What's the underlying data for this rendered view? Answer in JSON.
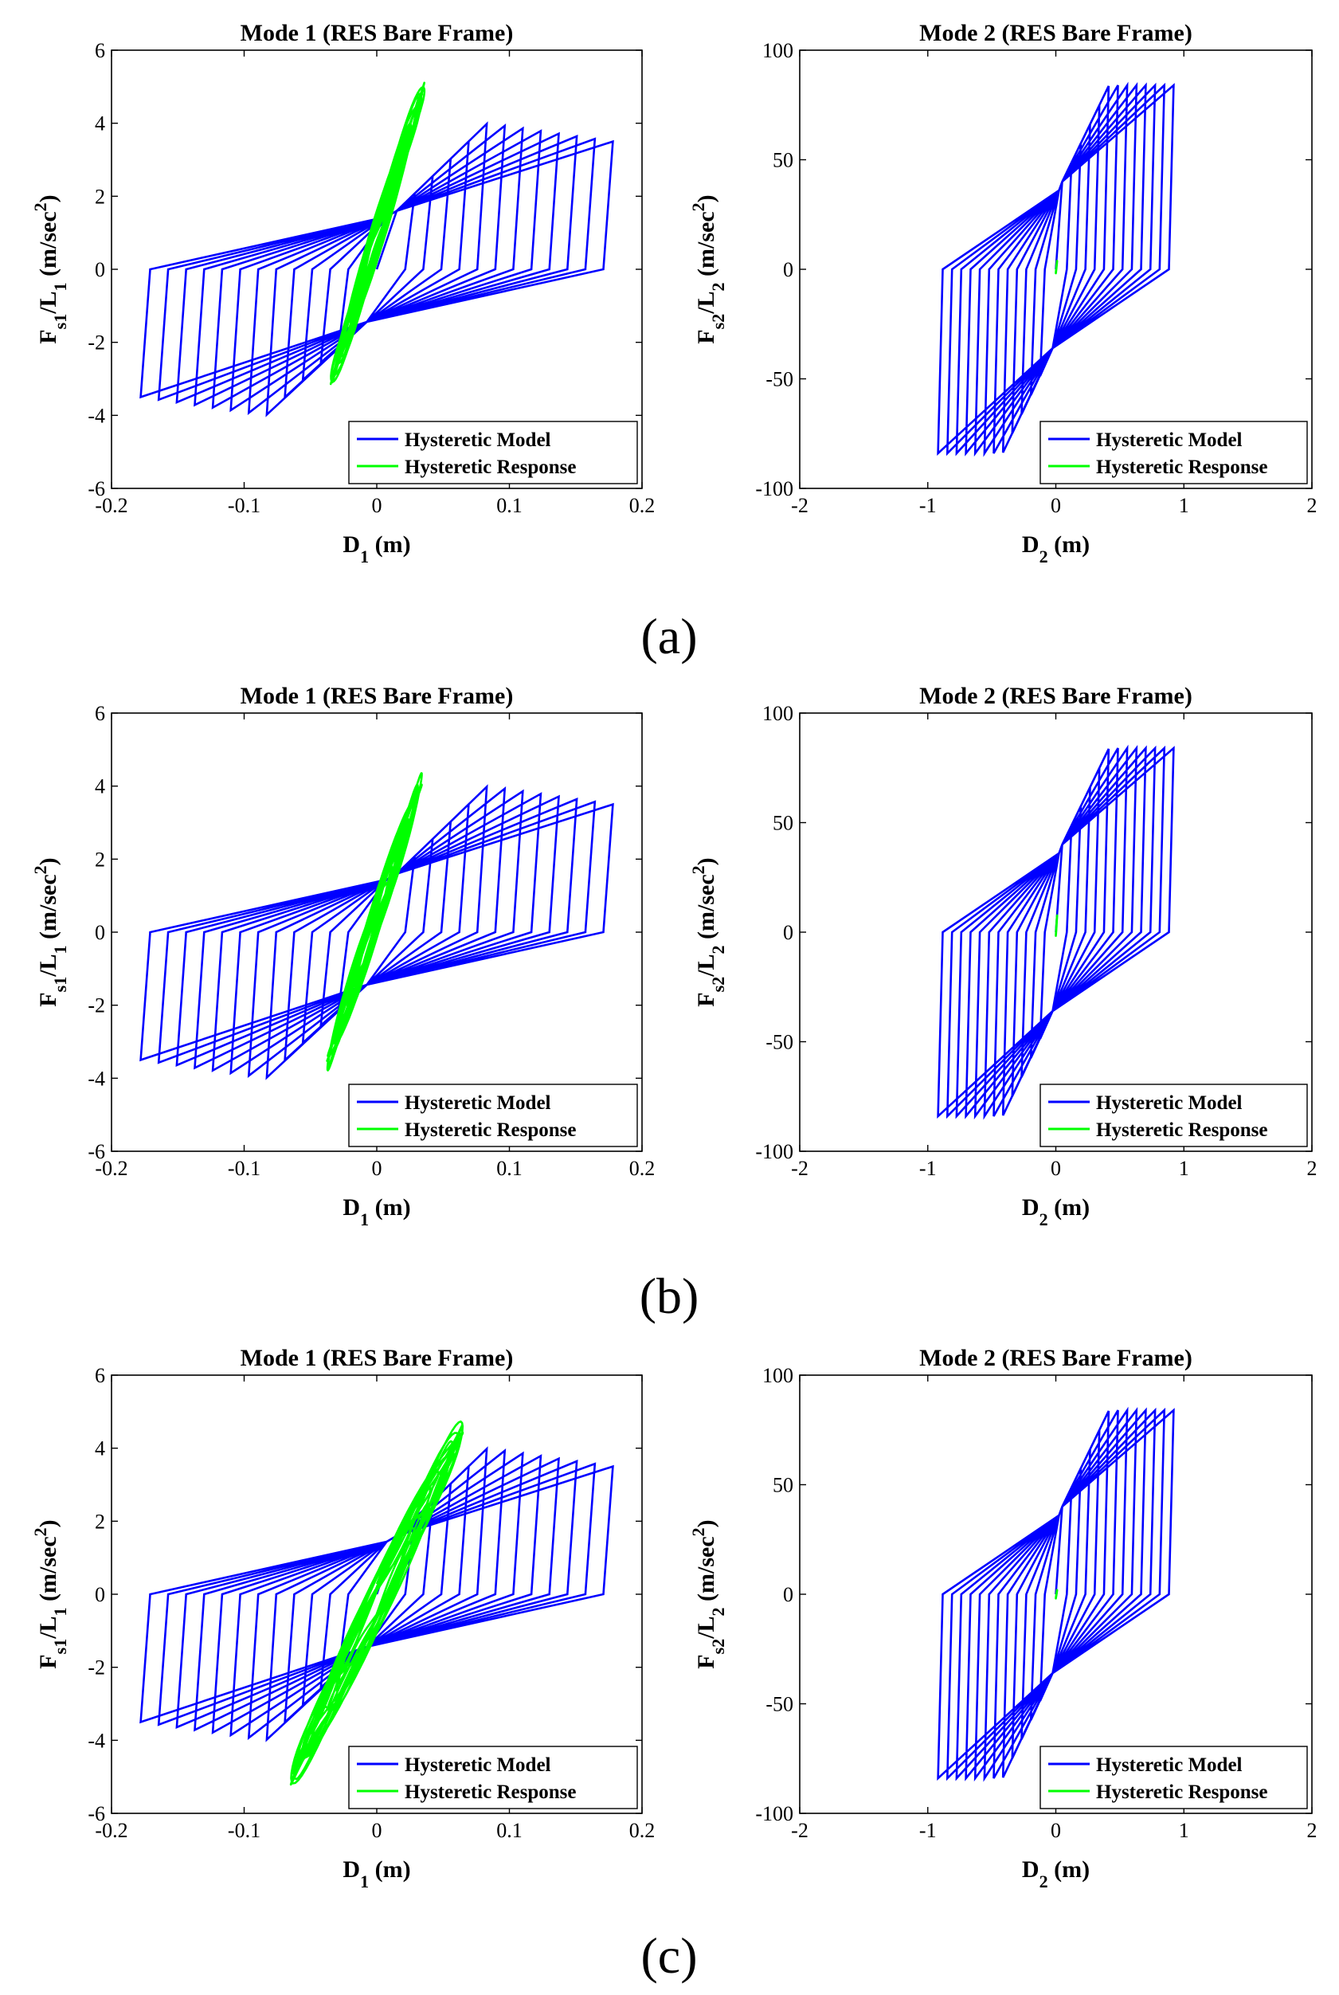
{
  "legend": {
    "model_label": "Hysteretic Model",
    "response_label": "Hysteretic Response",
    "model_color": "#0000ff",
    "response_color": "#00ff00"
  },
  "panels": [
    {
      "label": "(a)"
    },
    {
      "label": "(b)"
    },
    {
      "label": "(c)"
    }
  ],
  "chart_data": [
    {
      "type": "line",
      "panel": "(a)",
      "title": "Mode 1 (RES Bare Frame)",
      "xlabel": "D1 (m)",
      "ylabel": "Fs1/L1 (m/sec2)",
      "xlim": [
        -0.2,
        0.2
      ],
      "ylim": [
        -6,
        6
      ],
      "xticks": [
        "-0.2",
        "-0.1",
        "0",
        "0.1",
        "0.2"
      ],
      "yticks": [
        "-6",
        "-4",
        "-2",
        "0",
        "2",
        "4",
        "6"
      ],
      "series": [
        {
          "name": "Hysteretic Model",
          "model": "bilinear",
          "max_disp": 0.178,
          "yield_disp": 0.015,
          "yield_force": 1.6,
          "peak_force": 4.0,
          "end_force": 3.5,
          "cycles": 12
        },
        {
          "name": "Hysteretic Response",
          "d_range": [
            -0.035,
            0.036
          ],
          "f_range": [
            -3.5,
            5.4
          ]
        }
      ],
      "legend_location": "bottom-right"
    },
    {
      "type": "line",
      "panel": "(a)",
      "title": "Mode 2 (RES Bare Frame)",
      "xlabel": "D2 (m)",
      "ylabel": "Fs2/L2 (m/sec2)",
      "xlim": [
        -2,
        2
      ],
      "ylim": [
        -100,
        100
      ],
      "xticks": [
        "-2",
        "-1",
        "0",
        "1",
        "2"
      ],
      "yticks": [
        "-100",
        "-50",
        "0",
        "50",
        "100"
      ],
      "series": [
        {
          "name": "Hysteretic Model",
          "model": "bilinear",
          "max_disp": 0.92,
          "yield_disp": 0.05,
          "yield_force": 40,
          "peak_force": 84,
          "end_force": 84,
          "cycles": 12
        },
        {
          "name": "Hysteretic Response",
          "d_range": [
            0.0,
            0.01
          ],
          "f_range": [
            -2,
            4
          ]
        }
      ],
      "legend_location": "bottom-right"
    },
    {
      "type": "line",
      "panel": "(b)",
      "title": "Mode 1 (RES Bare Frame)",
      "xlabel": "D1 (m)",
      "ylabel": "Fs1/L1 (m/sec2)",
      "xlim": [
        -0.2,
        0.2
      ],
      "ylim": [
        -6,
        6
      ],
      "xticks": [
        "-0.2",
        "-0.1",
        "0",
        "0.1",
        "0.2"
      ],
      "yticks": [
        "-6",
        "-4",
        "-2",
        "0",
        "2",
        "4",
        "6"
      ],
      "series": [
        {
          "name": "Hysteretic Model",
          "model": "bilinear",
          "max_disp": 0.178,
          "yield_disp": 0.015,
          "yield_force": 1.6,
          "peak_force": 4.0,
          "end_force": 3.5,
          "cycles": 12
        },
        {
          "name": "Hysteretic Response",
          "d_range": [
            -0.038,
            0.034
          ],
          "f_range": [
            -4.0,
            4.5
          ]
        }
      ],
      "legend_location": "bottom-right"
    },
    {
      "type": "line",
      "panel": "(b)",
      "title": "Mode 2 (RES Bare Frame)",
      "xlabel": "D2 (m)",
      "ylabel": "Fs2/L2 (m/sec2)",
      "xlim": [
        -2,
        2
      ],
      "ylim": [
        -100,
        100
      ],
      "xticks": [
        "-2",
        "-1",
        "0",
        "1",
        "2"
      ],
      "yticks": [
        "-100",
        "-50",
        "0",
        "50",
        "100"
      ],
      "series": [
        {
          "name": "Hysteretic Model",
          "model": "bilinear",
          "max_disp": 0.92,
          "yield_disp": 0.05,
          "yield_force": 40,
          "peak_force": 84,
          "end_force": 84,
          "cycles": 12
        },
        {
          "name": "Hysteretic Response",
          "d_range": [
            0.0,
            0.01
          ],
          "f_range": [
            -2,
            8
          ]
        }
      ],
      "legend_location": "bottom-right"
    },
    {
      "type": "line",
      "panel": "(c)",
      "title": "Mode 1 (RES Bare Frame)",
      "xlabel": "D1 (m)",
      "ylabel": "Fs1/L1 (m/sec2)",
      "xlim": [
        -0.2,
        0.2
      ],
      "ylim": [
        -6,
        6
      ],
      "xticks": [
        "-0.2",
        "-0.1",
        "0",
        "0.1",
        "0.2"
      ],
      "yticks": [
        "-6",
        "-4",
        "-2",
        "0",
        "2",
        "4",
        "6"
      ],
      "series": [
        {
          "name": "Hysteretic Model",
          "model": "bilinear",
          "max_disp": 0.178,
          "yield_disp": 0.015,
          "yield_force": 1.6,
          "peak_force": 4.0,
          "end_force": 3.5,
          "cycles": 12
        },
        {
          "name": "Hysteretic Response",
          "d_range": [
            -0.065,
            0.065
          ],
          "f_range": [
            -5.5,
            5.0
          ]
        }
      ],
      "legend_location": "bottom-right"
    },
    {
      "type": "line",
      "panel": "(c)",
      "title": "Mode 2 (RES Bare Frame)",
      "xlabel": "D2 (m)",
      "ylabel": "Fs2/L2 (m/sec2)",
      "xlim": [
        -2,
        2
      ],
      "ylim": [
        -100,
        100
      ],
      "xticks": [
        "-2",
        "-1",
        "0",
        "1",
        "2"
      ],
      "yticks": [
        "-100",
        "-50",
        "0",
        "50",
        "100"
      ],
      "series": [
        {
          "name": "Hysteretic Model",
          "model": "bilinear",
          "max_disp": 0.92,
          "yield_disp": 0.05,
          "yield_force": 40,
          "peak_force": 84,
          "end_force": 84,
          "cycles": 12
        },
        {
          "name": "Hysteretic Response",
          "d_range": [
            0.0,
            0.01
          ],
          "f_range": [
            -2,
            2
          ]
        }
      ],
      "legend_location": "bottom-right"
    }
  ]
}
